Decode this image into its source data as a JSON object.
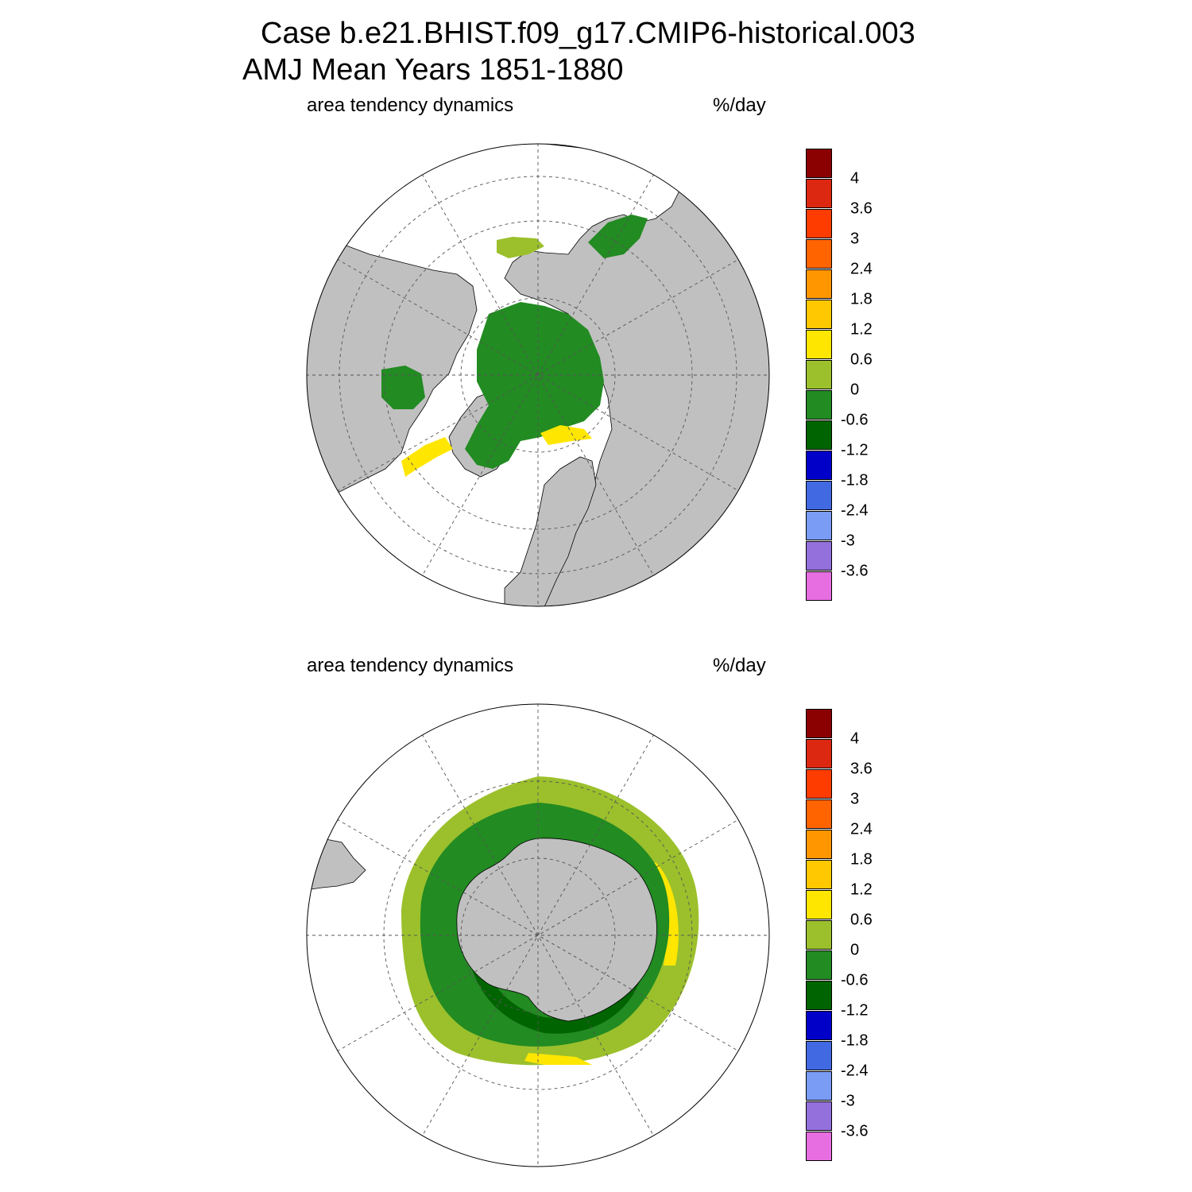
{
  "title": {
    "line1": "Case b.e21.BHIST.f09_g17.CMIP6-historical.003",
    "line2": "AMJ Mean   Years 1851-1880"
  },
  "panels": [
    {
      "id": "north",
      "left_label": "area tendency dynamics",
      "right_label": "%/day",
      "hemisphere": "Northern"
    },
    {
      "id": "south",
      "left_label": "area tendency dynamics",
      "right_label": "%/day",
      "hemisphere": "Southern"
    }
  ],
  "colorbar": {
    "unit": "%/day",
    "levels": [
      "4",
      "3.6",
      "3",
      "2.4",
      "1.8",
      "1.2",
      "0.6",
      "0",
      "-0.6",
      "-1.2",
      "-1.8",
      "-2.4",
      "-3",
      "-3.6"
    ],
    "colors": [
      "#8b0000",
      "#dc2810",
      "#ff3c00",
      "#ff6400",
      "#ff9600",
      "#ffc800",
      "#ffe600",
      "#9bc02c",
      "#228b22",
      "#006400",
      "#0000c8",
      "#4169e1",
      "#7a9cf5",
      "#9370db",
      "#e66ee0"
    ]
  },
  "colors": {
    "land": "#c0c0c0",
    "land_outline": "#000000",
    "grid": "#555555"
  }
}
